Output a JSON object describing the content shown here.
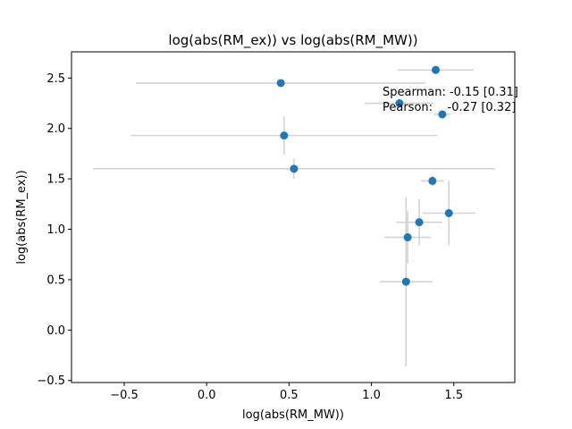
{
  "chart_data": {
    "type": "scatter",
    "title": "log(abs(RM_ex)) vs log(abs(RM_MW))",
    "xlabel": "log(abs(RM_MW))",
    "ylabel": "log(abs(RM_ex))",
    "xlim": [
      -0.82,
      1.87
    ],
    "ylim": [
      -0.52,
      2.76
    ],
    "xticks": [
      -0.5,
      0.0,
      0.5,
      1.0,
      1.5
    ],
    "yticks": [
      -0.5,
      0.0,
      0.5,
      1.0,
      1.5,
      2.0,
      2.5
    ],
    "xtick_labels": [
      "−0.5",
      "0.0",
      "0.5",
      "1.0",
      "1.5"
    ],
    "ytick_labels": [
      "−0.5",
      "0.0",
      "0.5",
      "1.0",
      "1.5",
      "2.0",
      "2.5"
    ],
    "grid": false,
    "marker_color": "#1f77b4",
    "errorbar_color": "#d3d3d3",
    "points": [
      {
        "x": 1.39,
        "y": 2.58,
        "xerr": 0.23,
        "yerr": 0.0
      },
      {
        "x": 0.45,
        "y": 2.45,
        "xerr": 0.88,
        "yerr": 0.0
      },
      {
        "x": 1.17,
        "y": 2.25,
        "xerr": 0.21,
        "yerr": 0.0
      },
      {
        "x": 1.43,
        "y": 2.14,
        "xerr": 0.05,
        "yerr": 0.0
      },
      {
        "x": 0.47,
        "y": 1.93,
        "xerr": 0.93,
        "yerr": 0.19
      },
      {
        "x": 0.53,
        "y": 1.6,
        "xerr": 1.22,
        "yerr": 0.1
      },
      {
        "x": 1.37,
        "y": 1.48,
        "xerr": 0.07,
        "yerr": 0.05
      },
      {
        "x": 1.47,
        "y": 1.16,
        "xerr": 0.16,
        "yerr": 0.32
      },
      {
        "x": 1.29,
        "y": 1.07,
        "xerr": 0.14,
        "yerr": 0.23
      },
      {
        "x": 1.22,
        "y": 0.92,
        "xerr": 0.14,
        "yerr": 0.26
      },
      {
        "x": 1.21,
        "y": 0.48,
        "xerr": 0.16,
        "yerr": 0.84
      }
    ],
    "annotations": {
      "spearman": "Spearman: -0.15 [0.31]",
      "pearson": "Pearson:    -0.27 [0.32]"
    }
  }
}
